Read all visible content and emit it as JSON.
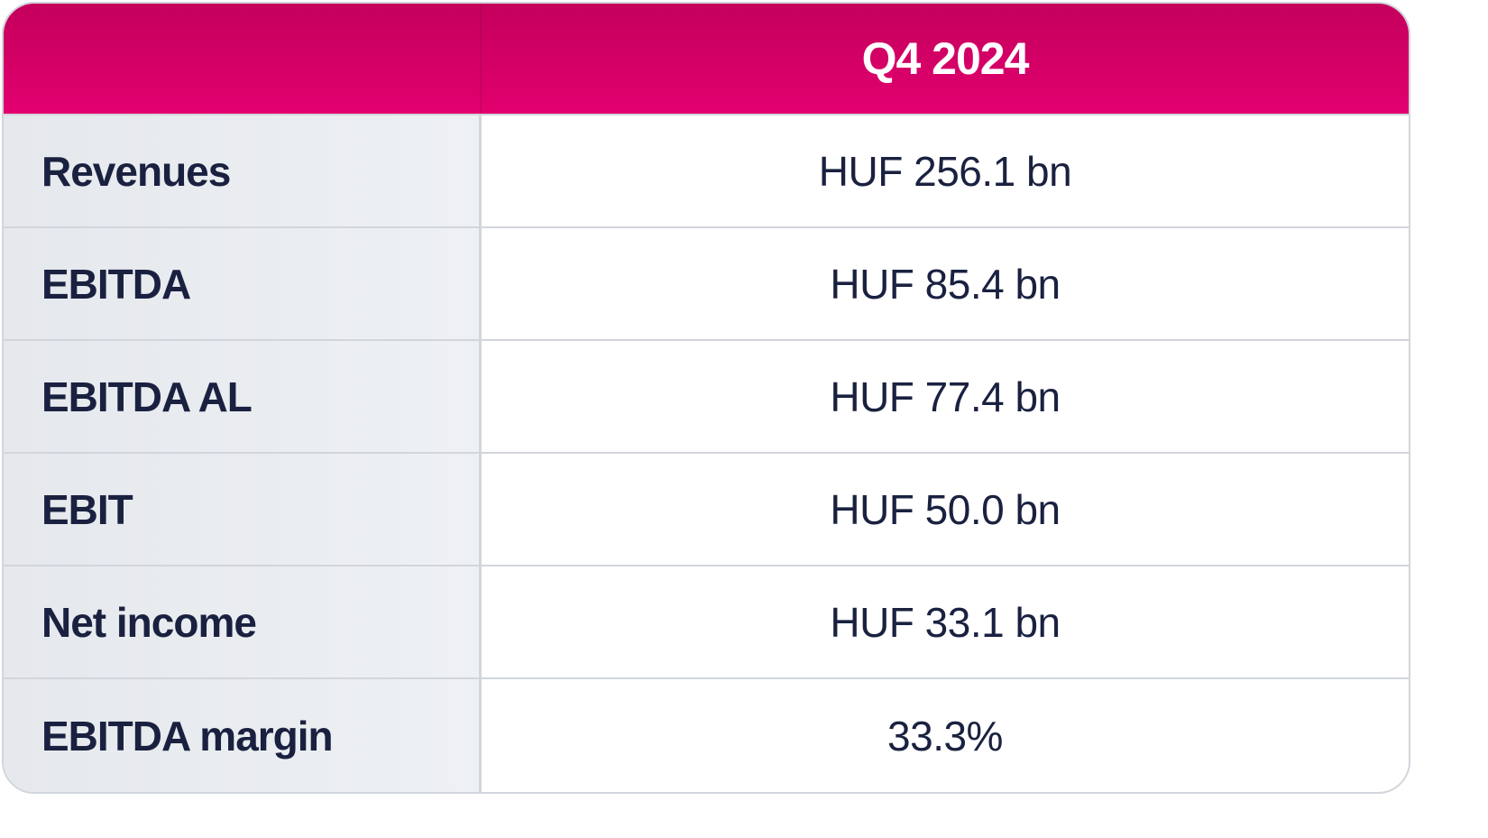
{
  "table": {
    "header": {
      "period": "Q4 2024"
    },
    "rows": [
      {
        "label": "Revenues",
        "value": "HUF 256.1 bn"
      },
      {
        "label": "EBITDA",
        "value": "HUF 85.4 bn"
      },
      {
        "label": "EBITDA AL",
        "value": "HUF 77.4 bn"
      },
      {
        "label": "EBIT",
        "value": "HUF 50.0 bn"
      },
      {
        "label": "Net income",
        "value": "HUF 33.1 bn"
      },
      {
        "label": "EBITDA margin",
        "value": "33.3%"
      }
    ]
  },
  "colors": {
    "header_gradient_top": "#c4005c",
    "header_gradient_bottom": "#e2006f",
    "text": "#1a2140",
    "label_background": "#e9ecf0",
    "border": "#d2d6dc"
  }
}
